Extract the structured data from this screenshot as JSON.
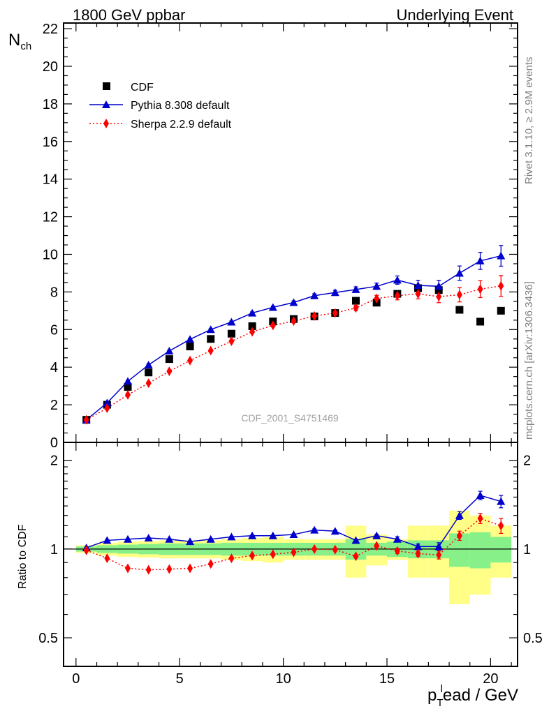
{
  "header": {
    "left_title": "1800 GeV ppbar",
    "right_title": "Underlying Event"
  },
  "side_labels": {
    "rivet": "Rivet 3.1.10, ≥ 2.9M events",
    "mcplots": "mcplots.cern.ch [arXiv:1306.3436]"
  },
  "watermark": "CDF_2001_S4751469",
  "axes": {
    "ylabel_main": "N",
    "ylabel_main_sub": "ch",
    "ylabel_ratio": "Ratio to CDF",
    "xlabel_p": "p",
    "xlabel_sub": "T",
    "xlabel_sup": "l",
    "xlabel_rest": "ead / GeV",
    "x_ticks": [
      "0",
      "5",
      "10",
      "15",
      "20"
    ],
    "y_ticks_main": [
      "0",
      "2",
      "4",
      "6",
      "8",
      "10",
      "12",
      "14",
      "16",
      "18",
      "20",
      "22"
    ],
    "y_ticks_ratio": [
      "0.5",
      "1",
      "2"
    ]
  },
  "legend": {
    "cdf": "CDF",
    "pythia": "Pythia 8.308 default",
    "sherpa": "Sherpa 2.2.9 default"
  },
  "colors": {
    "cdf": "#000000",
    "pythia": "#0000cc",
    "sherpa": "#ff0000",
    "band_inner": "#88f088",
    "band_outer": "#ffff88"
  },
  "chart_data": [
    {
      "type": "scatter",
      "panel": "main",
      "xlim": [
        -0.6,
        21.3
      ],
      "ylim": [
        0,
        22.3
      ],
      "x": [
        0.5,
        1.5,
        2.5,
        3.5,
        4.5,
        5.5,
        6.5,
        7.5,
        8.5,
        9.5,
        10.5,
        11.5,
        12.5,
        13.5,
        14.5,
        15.5,
        16.5,
        17.5,
        18.5,
        19.5,
        20.5
      ],
      "series": [
        {
          "name": "CDF",
          "marker": "square",
          "values": [
            1.2,
            2.0,
            2.95,
            3.72,
            4.43,
            5.1,
            5.5,
            5.78,
            6.18,
            6.43,
            6.56,
            6.7,
            6.88,
            7.53,
            7.43,
            7.9,
            8.2,
            8.1,
            7.05,
            6.42,
            7.0
          ]
        },
        {
          "name": "Pythia 8.308 default",
          "marker": "triangle",
          "line": "solid",
          "values": [
            1.2,
            2.1,
            3.25,
            4.12,
            4.86,
            5.48,
            6.0,
            6.4,
            6.88,
            7.18,
            7.44,
            7.8,
            7.97,
            8.13,
            8.3,
            8.63,
            8.35,
            8.3,
            9.0,
            9.65,
            9.92
          ],
          "errors": [
            0.05,
            0.05,
            0.05,
            0.05,
            0.05,
            0.05,
            0.05,
            0.05,
            0.06,
            0.07,
            0.08,
            0.1,
            0.12,
            0.14,
            0.17,
            0.22,
            0.27,
            0.32,
            0.38,
            0.45,
            0.55
          ]
        },
        {
          "name": "Sherpa 2.2.9 default",
          "marker": "diamond",
          "line": "dotted",
          "values": [
            1.2,
            1.82,
            2.53,
            3.15,
            3.78,
            4.35,
            4.88,
            5.38,
            5.88,
            6.22,
            6.45,
            6.72,
            6.88,
            7.15,
            7.65,
            7.8,
            7.9,
            7.75,
            7.85,
            8.15,
            8.32
          ],
          "errors": [
            0.05,
            0.05,
            0.05,
            0.05,
            0.05,
            0.05,
            0.05,
            0.05,
            0.06,
            0.07,
            0.08,
            0.1,
            0.12,
            0.14,
            0.17,
            0.22,
            0.27,
            0.32,
            0.38,
            0.45,
            0.55
          ]
        }
      ]
    },
    {
      "type": "line",
      "panel": "ratio",
      "ylabel": "Ratio to CDF",
      "ylim": [
        0.4,
        2.3
      ],
      "yscale": "log",
      "x": [
        0.5,
        1.5,
        2.5,
        3.5,
        4.5,
        5.5,
        6.5,
        7.5,
        8.5,
        9.5,
        10.5,
        11.5,
        12.5,
        13.5,
        14.5,
        15.5,
        16.5,
        17.5,
        18.5,
        19.5,
        20.5
      ],
      "bin_edges": [
        0,
        1,
        2,
        3,
        4,
        5,
        6,
        7,
        8,
        9,
        10,
        11,
        12,
        13,
        14,
        15,
        16,
        17,
        18,
        19,
        20,
        21
      ],
      "band_inner": [
        0.02,
        0.03,
        0.035,
        0.04,
        0.045,
        0.045,
        0.045,
        0.05,
        0.05,
        0.05,
        0.05,
        0.05,
        0.05,
        0.08,
        0.05,
        0.06,
        0.07,
        0.07,
        0.13,
        0.14,
        0.1
      ],
      "band_outer": [
        0.03,
        0.05,
        0.06,
        0.065,
        0.07,
        0.07,
        0.07,
        0.08,
        0.09,
        0.1,
        0.08,
        0.08,
        0.08,
        0.2,
        0.12,
        0.08,
        0.2,
        0.2,
        0.35,
        0.3,
        0.2
      ],
      "series": [
        {
          "name": "Pythia 8.308 default",
          "values": [
            1.01,
            1.07,
            1.08,
            1.09,
            1.08,
            1.06,
            1.08,
            1.1,
            1.11,
            1.11,
            1.12,
            1.16,
            1.15,
            1.07,
            1.11,
            1.08,
            1.02,
            1.02,
            1.3,
            1.52,
            1.45
          ],
          "errors": [
            0.005,
            0.005,
            0.005,
            0.005,
            0.005,
            0.005,
            0.005,
            0.005,
            0.005,
            0.005,
            0.005,
            0.01,
            0.01,
            0.01,
            0.01,
            0.02,
            0.02,
            0.03,
            0.04,
            0.05,
            0.07
          ]
        },
        {
          "name": "Sherpa 2.2.9 default",
          "values": [
            0.99,
            0.93,
            0.86,
            0.85,
            0.855,
            0.86,
            0.89,
            0.93,
            0.95,
            0.96,
            0.975,
            1.0,
            0.995,
            0.945,
            1.025,
            0.985,
            0.965,
            0.955,
            1.11,
            1.27,
            1.2
          ],
          "errors": [
            0.005,
            0.005,
            0.005,
            0.005,
            0.005,
            0.005,
            0.005,
            0.005,
            0.005,
            0.005,
            0.005,
            0.01,
            0.01,
            0.01,
            0.01,
            0.02,
            0.02,
            0.03,
            0.04,
            0.05,
            0.07
          ]
        }
      ]
    }
  ]
}
